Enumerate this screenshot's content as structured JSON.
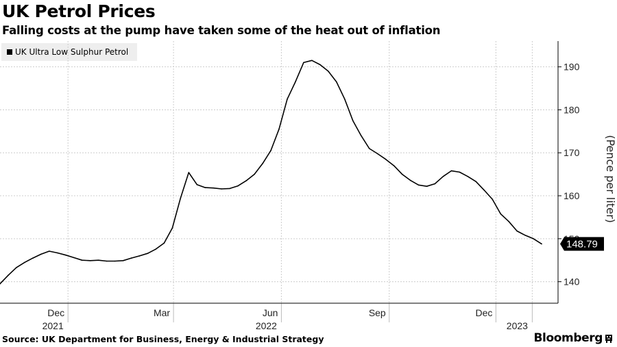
{
  "header": {
    "title": "UK Petrol Prices",
    "subtitle": "Falling costs at the pump have taken some of the heat out of inflation"
  },
  "legend": {
    "label": "UK Ultra Low Sulphur Petrol"
  },
  "footer": {
    "source": "Source: UK Department for Business, Energy & Industrial Strategy",
    "brand": "Bloomberg"
  },
  "colors": {
    "line": "#000000",
    "grid": "#cccccc",
    "badge_bg": "#000000",
    "badge_text": "#ffffff"
  },
  "chart_data": {
    "type": "line",
    "title": "UK Petrol Prices",
    "subtitle": "Falling costs at the pump have taken some of the heat out of inflation",
    "ylabel": "(Pence per liter)",
    "ylim": [
      135,
      196
    ],
    "yticks": [
      140,
      150,
      160,
      170,
      180,
      190
    ],
    "xlim": [
      "2021-10-04",
      "2023-01-23"
    ],
    "xticks": [
      {
        "date": "2021-12-01",
        "label": "Dec",
        "year": "2021"
      },
      {
        "date": "2022-03-01",
        "label": "Mar",
        "year": ""
      },
      {
        "date": "2022-06-01",
        "label": "Jun",
        "year": "2022"
      },
      {
        "date": "2022-09-01",
        "label": "Sep",
        "year": ""
      },
      {
        "date": "2022-12-01",
        "label": "Dec",
        "year": ""
      },
      {
        "date": "2023-01-01",
        "label": "",
        "year": "2023"
      }
    ],
    "grid": true,
    "legend_position": "top-left",
    "last_value_label": "148.79",
    "series": [
      {
        "name": "UK Ultra Low Sulphur Petrol",
        "points": [
          [
            "2021-10-04",
            139.5
          ],
          [
            "2021-10-11",
            141.5
          ],
          [
            "2021-10-18",
            143.3
          ],
          [
            "2021-10-25",
            144.5
          ],
          [
            "2021-11-01",
            145.5
          ],
          [
            "2021-11-08",
            146.4
          ],
          [
            "2021-11-15",
            147.1
          ],
          [
            "2021-11-22",
            146.7
          ],
          [
            "2021-11-29",
            146.2
          ],
          [
            "2021-12-06",
            145.6
          ],
          [
            "2021-12-13",
            145.0
          ],
          [
            "2021-12-20",
            144.9
          ],
          [
            "2021-12-27",
            145.0
          ],
          [
            "2022-01-03",
            144.8
          ],
          [
            "2022-01-10",
            144.8
          ],
          [
            "2022-01-17",
            144.9
          ],
          [
            "2022-01-24",
            145.5
          ],
          [
            "2022-01-31",
            146.0
          ],
          [
            "2022-02-07",
            146.6
          ],
          [
            "2022-02-14",
            147.6
          ],
          [
            "2022-02-21",
            149.0
          ],
          [
            "2022-02-28",
            152.5
          ],
          [
            "2022-03-07",
            159.5
          ],
          [
            "2022-03-14",
            165.4
          ],
          [
            "2022-03-21",
            162.6
          ],
          [
            "2022-03-28",
            161.9
          ],
          [
            "2022-04-04",
            161.8
          ],
          [
            "2022-04-11",
            161.6
          ],
          [
            "2022-04-18",
            161.7
          ],
          [
            "2022-04-25",
            162.3
          ],
          [
            "2022-05-02",
            163.5
          ],
          [
            "2022-05-09",
            165.0
          ],
          [
            "2022-05-16",
            167.5
          ],
          [
            "2022-05-23",
            170.5
          ],
          [
            "2022-05-30",
            175.5
          ],
          [
            "2022-06-06",
            182.5
          ],
          [
            "2022-06-13",
            186.5
          ],
          [
            "2022-06-20",
            191.0
          ],
          [
            "2022-06-27",
            191.5
          ],
          [
            "2022-07-04",
            190.5
          ],
          [
            "2022-07-11",
            189.0
          ],
          [
            "2022-07-18",
            186.5
          ],
          [
            "2022-07-25",
            182.5
          ],
          [
            "2022-08-01",
            177.5
          ],
          [
            "2022-08-08",
            174.0
          ],
          [
            "2022-08-15",
            171.0
          ],
          [
            "2022-08-22",
            169.8
          ],
          [
            "2022-08-29",
            168.5
          ],
          [
            "2022-09-05",
            167.0
          ],
          [
            "2022-09-12",
            165.0
          ],
          [
            "2022-09-19",
            163.6
          ],
          [
            "2022-09-26",
            162.5
          ],
          [
            "2022-10-03",
            162.2
          ],
          [
            "2022-10-10",
            162.8
          ],
          [
            "2022-10-17",
            164.5
          ],
          [
            "2022-10-24",
            165.8
          ],
          [
            "2022-10-31",
            165.5
          ],
          [
            "2022-11-07",
            164.5
          ],
          [
            "2022-11-14",
            163.3
          ],
          [
            "2022-11-21",
            161.3
          ],
          [
            "2022-11-28",
            159.2
          ],
          [
            "2022-12-05",
            155.8
          ],
          [
            "2022-12-12",
            154.0
          ],
          [
            "2022-12-19",
            151.8
          ],
          [
            "2022-12-26",
            150.8
          ],
          [
            "2023-01-02",
            150.0
          ],
          [
            "2023-01-09",
            148.79
          ]
        ]
      }
    ]
  }
}
